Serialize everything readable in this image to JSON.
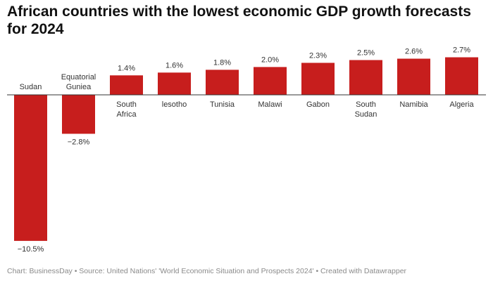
{
  "chart_data": {
    "type": "bar",
    "title": "African countries with the lowest economic GDP growth forecasts for 2024",
    "categories": [
      "Sudan",
      "Equatorial Guniea",
      "South Africa",
      "lesotho",
      "Tunisia",
      "Malawi",
      "Gabon",
      "South Sudan",
      "Namibia",
      "Algeria"
    ],
    "category_lines": [
      [
        "Sudan"
      ],
      [
        "Equatorial",
        "Guniea"
      ],
      [
        "South",
        "Africa"
      ],
      [
        "lesotho"
      ],
      [
        "Tunisia"
      ],
      [
        "Malawi"
      ],
      [
        "Gabon"
      ],
      [
        "South",
        "Sudan"
      ],
      [
        "Namibia"
      ],
      [
        "Algeria"
      ]
    ],
    "values": [
      -10.5,
      -2.8,
      1.4,
      1.6,
      1.8,
      2.0,
      2.3,
      2.5,
      2.6,
      2.7
    ],
    "value_labels": [
      "−10.5%",
      "−2.8%",
      "1.4%",
      "1.6%",
      "1.8%",
      "2.0%",
      "2.3%",
      "2.5%",
      "2.6%",
      "2.7%"
    ],
    "xlabel": "",
    "ylabel": "",
    "grid": false,
    "bar_color": "#c71e1d"
  },
  "footer": "Chart: BusinessDay • Source: United Nations' 'World Economic Situation and Prospects 2024' • Created with Datawrapper"
}
